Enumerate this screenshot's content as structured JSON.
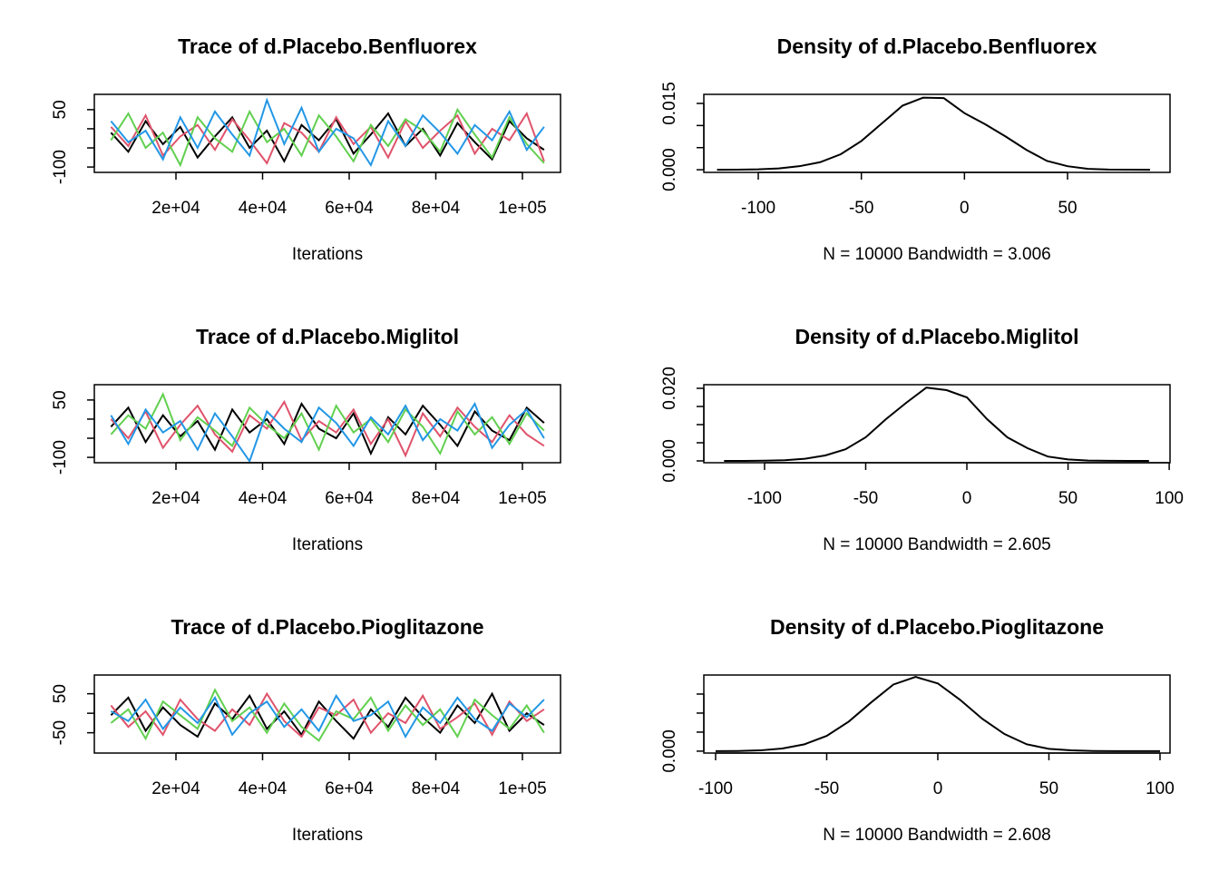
{
  "chart_data": [
    {
      "type": "line",
      "title": "Trace of d.Placebo.Benfluorex",
      "x_label": "Iterations",
      "x": [
        5000,
        9000,
        13000,
        17000,
        21000,
        25000,
        29000,
        33000,
        37000,
        41000,
        45000,
        49000,
        53000,
        57000,
        61000,
        65000,
        69000,
        73000,
        77000,
        81000,
        85000,
        89000,
        93000,
        97000,
        101000,
        105000
      ],
      "series": [
        {
          "color": "#000000",
          "values": [
            -10,
            -60,
            20,
            -40,
            5,
            -75,
            -20,
            30,
            -50,
            -5,
            -85,
            10,
            -30,
            25,
            -65,
            -15,
            40,
            -45,
            0,
            -70,
            15,
            -35,
            -80,
            20,
            -25,
            -55
          ]
        },
        {
          "color": "#DF536B",
          "values": [
            5,
            -45,
            35,
            -70,
            -20,
            10,
            -55,
            25,
            -30,
            -90,
            15,
            -10,
            -60,
            30,
            -40,
            5,
            -75,
            20,
            -50,
            -5,
            35,
            -65,
            0,
            -30,
            40,
            -85
          ]
        },
        {
          "color": "#61D04F",
          "values": [
            -30,
            40,
            -50,
            -10,
            -95,
            30,
            -25,
            -60,
            45,
            -35,
            0,
            -70,
            35,
            -20,
            -85,
            10,
            -45,
            25,
            -5,
            -60,
            50,
            -15,
            -75,
            30,
            -40,
            -90
          ]
        },
        {
          "color": "#2297E6",
          "values": [
            20,
            -35,
            -5,
            -80,
            30,
            -50,
            45,
            -15,
            -70,
            75,
            -40,
            55,
            -60,
            0,
            -25,
            -95,
            20,
            -45,
            35,
            -10,
            -65,
            10,
            -30,
            45,
            -55,
            5
          ]
        }
      ],
      "xlim": [
        1152,
        108796
      ],
      "xticks": [
        {
          "value": 20000,
          "label": "2e+04"
        },
        {
          "value": 40000,
          "label": "4e+04"
        },
        {
          "value": 60000,
          "label": "6e+04"
        },
        {
          "value": 80000,
          "label": "8e+04"
        },
        {
          "value": 100000,
          "label": "1e+05"
        }
      ],
      "ylim": [
        -114,
        90
      ],
      "yticks": [
        -100,
        {
          "value": -50,
          "label": null
        },
        {
          "value": 0,
          "label": null
        },
        50
      ]
    },
    {
      "type": "line",
      "title": "Density of d.Placebo.Benfluorex",
      "x_label": "N = 10000   Bandwidth = 3.006",
      "x": [
        -120,
        -110,
        -100,
        -90,
        -80,
        -70,
        -60,
        -50,
        -40,
        -30,
        -20,
        -10,
        0,
        10,
        20,
        30,
        40,
        50,
        60,
        70,
        80,
        90
      ],
      "series": [
        {
          "color": "#000000",
          "values": [
            0,
            2e-05,
            0.0001,
            0.0003,
            0.0008,
            0.0017,
            0.0035,
            0.0065,
            0.0105,
            0.0145,
            0.0163,
            0.0162,
            0.0128,
            0.0103,
            0.0075,
            0.0045,
            0.002,
            0.0008,
            0.0002,
            5e-05,
            1e-05,
            0
          ]
        }
      ],
      "xlim": [
        -126.4,
        99.7
      ],
      "xticks": [
        -100,
        -50,
        0,
        50
      ],
      "ylim": [
        -0.0006,
        0.01705
      ],
      "yticks": [
        {
          "value": 0,
          "label": "0.000"
        },
        {
          "value": 0.005,
          "label": null
        },
        {
          "value": 0.01,
          "label": null
        },
        {
          "value": 0.015,
          "label": "0.015"
        }
      ]
    },
    {
      "type": "line",
      "title": "Trace of d.Placebo.Miglitol",
      "x_label": "Iterations",
      "x": [
        5000,
        9000,
        13000,
        17000,
        21000,
        25000,
        29000,
        33000,
        37000,
        41000,
        45000,
        49000,
        53000,
        57000,
        61000,
        65000,
        69000,
        73000,
        77000,
        81000,
        85000,
        89000,
        93000,
        97000,
        101000,
        105000
      ],
      "series": [
        {
          "color": "#000000",
          "values": [
            -20,
            30,
            -60,
            10,
            -45,
            -5,
            -80,
            25,
            -35,
            0,
            -65,
            40,
            -25,
            -50,
            15,
            -90,
            5,
            -40,
            35,
            -15,
            -70,
            20,
            -30,
            -55,
            30,
            -10
          ]
        },
        {
          "color": "#DF536B",
          "values": [
            0,
            -50,
            20,
            -75,
            -15,
            35,
            -40,
            -85,
            10,
            -25,
            45,
            -55,
            -5,
            -35,
            25,
            -65,
            0,
            -95,
            15,
            -45,
            30,
            -20,
            -60,
            10,
            -40,
            -70
          ]
        },
        {
          "color": "#61D04F",
          "values": [
            -40,
            10,
            -25,
            65,
            -55,
            5,
            -30,
            -70,
            30,
            -15,
            -50,
            15,
            -80,
            35,
            -35,
            0,
            -60,
            25,
            -20,
            -90,
            20,
            -40,
            5,
            -65,
            15,
            -30
          ]
        },
        {
          "color": "#2297E6",
          "values": [
            10,
            -65,
            25,
            -35,
            -5,
            -80,
            15,
            -45,
            -110,
            20,
            -25,
            -60,
            30,
            -10,
            -70,
            5,
            -40,
            35,
            -55,
            0,
            -30,
            40,
            -75,
            -15,
            25,
            -50
          ]
        }
      ],
      "xlim": [
        1152,
        108796
      ],
      "xticks": [
        {
          "value": 20000,
          "label": "2e+04"
        },
        {
          "value": 40000,
          "label": "4e+04"
        },
        {
          "value": 60000,
          "label": "6e+04"
        },
        {
          "value": 80000,
          "label": "8e+04"
        },
        {
          "value": 100000,
          "label": "1e+05"
        }
      ],
      "ylim": [
        -114,
        90
      ],
      "yticks": [
        -100,
        {
          "value": -50,
          "label": null
        },
        {
          "value": 0,
          "label": null
        },
        50
      ]
    },
    {
      "type": "line",
      "title": "Density of d.Placebo.Miglitol",
      "x_label": "N = 10000   Bandwidth = 2.605",
      "x": [
        -120,
        -110,
        -100,
        -90,
        -80,
        -70,
        -60,
        -50,
        -40,
        -30,
        -20,
        -10,
        0,
        10,
        20,
        30,
        40,
        50,
        60,
        70,
        80,
        90
      ],
      "series": [
        {
          "color": "#000000",
          "values": [
            0,
            0,
            5e-05,
            0.0002,
            0.0006,
            0.0015,
            0.0032,
            0.0065,
            0.0115,
            0.016,
            0.0202,
            0.0195,
            0.0175,
            0.0115,
            0.0065,
            0.0035,
            0.0012,
            0.0004,
            0.0001,
            2e-05,
            0,
            0
          ]
        }
      ],
      "xlim": [
        -130,
        100.4
      ],
      "xticks": [
        -100,
        -50,
        0,
        50,
        100
      ],
      "ylim": [
        -0.0005,
        0.021
      ],
      "yticks": [
        {
          "value": 0,
          "label": "0.000"
        },
        {
          "value": 0.005,
          "label": null
        },
        {
          "value": 0.01,
          "label": null
        },
        {
          "value": 0.015,
          "label": null
        },
        {
          "value": 0.02,
          "label": "0.020"
        }
      ]
    },
    {
      "type": "line",
      "title": "Trace of d.Placebo.Pioglitazone",
      "x_label": "Iterations",
      "x": [
        5000,
        9000,
        13000,
        17000,
        21000,
        25000,
        29000,
        33000,
        37000,
        41000,
        45000,
        49000,
        53000,
        57000,
        61000,
        65000,
        69000,
        73000,
        77000,
        81000,
        85000,
        89000,
        93000,
        97000,
        101000,
        105000
      ],
      "series": [
        {
          "color": "#000000",
          "values": [
            -5,
            40,
            -45,
            15,
            -30,
            -60,
            25,
            -15,
            45,
            -40,
            5,
            -55,
            30,
            -20,
            -65,
            10,
            -35,
            40,
            -10,
            -50,
            20,
            -25,
            50,
            -45,
            0,
            -30
          ]
        },
        {
          "color": "#DF536B",
          "values": [
            20,
            -35,
            5,
            -55,
            35,
            -15,
            -45,
            10,
            -30,
            50,
            -20,
            -60,
            15,
            -5,
            35,
            -50,
            0,
            -25,
            45,
            -40,
            -10,
            25,
            -55,
            30,
            -20,
            10
          ]
        },
        {
          "color": "#61D04F",
          "values": [
            -25,
            10,
            -65,
            30,
            -5,
            -40,
            60,
            -20,
            15,
            -50,
            25,
            -35,
            -70,
            5,
            -15,
            40,
            -45,
            20,
            -30,
            10,
            -60,
            35,
            -5,
            -40,
            20,
            -50
          ]
        },
        {
          "color": "#2297E6",
          "values": [
            5,
            -20,
            35,
            -40,
            15,
            -25,
            40,
            -55,
            0,
            30,
            -35,
            10,
            -45,
            45,
            -20,
            -5,
            30,
            -60,
            15,
            -25,
            40,
            -15,
            -45,
            25,
            -10,
            35
          ]
        }
      ],
      "xlim": [
        1152,
        108796
      ],
      "xticks": [
        {
          "value": 20000,
          "label": "2e+04"
        },
        {
          "value": 40000,
          "label": "4e+04"
        },
        {
          "value": 60000,
          "label": "6e+04"
        },
        {
          "value": 80000,
          "label": "8e+04"
        },
        {
          "value": 100000,
          "label": "1e+05"
        }
      ],
      "ylim": [
        -102,
        98
      ],
      "yticks": [
        -50,
        {
          "value": 0,
          "label": null
        },
        50
      ]
    },
    {
      "type": "line",
      "title": "Density of d.Placebo.Pioglitazone",
      "x_label": "N = 10000   Bandwidth = 2.608",
      "x": [
        -100,
        -90,
        -80,
        -70,
        -60,
        -50,
        -40,
        -30,
        -20,
        -10,
        0,
        10,
        20,
        30,
        40,
        50,
        60,
        70,
        80,
        90,
        100
      ],
      "series": [
        {
          "color": "#000000",
          "values": [
            0,
            5e-05,
            0.0002,
            0.0007,
            0.0018,
            0.004,
            0.0078,
            0.0128,
            0.0175,
            0.0195,
            0.0178,
            0.0135,
            0.0085,
            0.0045,
            0.0018,
            0.0006,
            0.0002,
            5e-05,
            0,
            0,
            0
          ]
        }
      ],
      "xlim": [
        -105.3,
        104.5
      ],
      "xticks": [
        -100,
        -50,
        0,
        50,
        100
      ],
      "ylim": [
        -0.0005,
        0.02
      ],
      "yticks": [
        {
          "value": 0,
          "label": "0.000"
        },
        {
          "value": 0.005,
          "label": null
        },
        {
          "value": 0.01,
          "label": null
        },
        {
          "value": 0.015,
          "label": null
        }
      ]
    }
  ]
}
